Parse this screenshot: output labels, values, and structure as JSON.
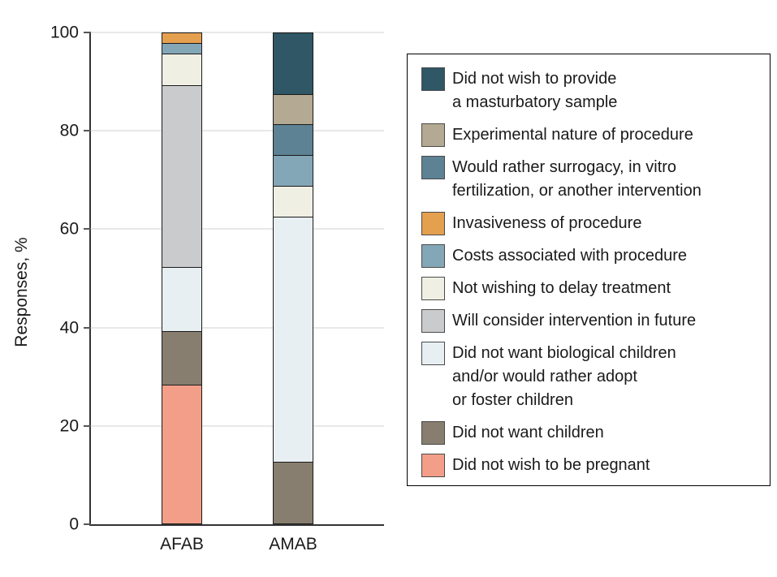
{
  "figure": {
    "background": "#ffffff"
  },
  "chart_data": {
    "type": "bar",
    "stacked": true,
    "title": "",
    "xlabel": "",
    "ylabel": "Responses, %",
    "ylim": [
      0,
      100
    ],
    "yticks": [
      0,
      20,
      40,
      60,
      80,
      100
    ],
    "grid": "horizontal",
    "categories": [
      "AFAB",
      "AMAB"
    ],
    "series": [
      {
        "name": "Did not wish to be pregnant",
        "color": "#F39E88",
        "values": [
          28.3,
          0
        ]
      },
      {
        "name": "Did not want children",
        "color": "#877E6F",
        "values": [
          10.9,
          12.5
        ]
      },
      {
        "name": "Did not want biological children and/or would rather adopt or foster children",
        "color": "#E7EFF3",
        "values": [
          13.0,
          50.0
        ]
      },
      {
        "name": "Will consider intervention in future",
        "color": "#C9CBCD",
        "values": [
          37.0,
          0
        ]
      },
      {
        "name": "Not wishing to delay treatment",
        "color": "#F0EFE3",
        "values": [
          6.5,
          6.25
        ]
      },
      {
        "name": "Costs associated with procedure",
        "color": "#84A7B7",
        "values": [
          2.2,
          6.25
        ]
      },
      {
        "name": "Invasiveness of procedure",
        "color": "#E5A04F",
        "values": [
          2.2,
          0
        ]
      },
      {
        "name": "Would rather surrogacy, in vitro fertilization, or another intervention",
        "color": "#5D8294",
        "values": [
          0,
          6.25
        ]
      },
      {
        "name": "Experimental nature of procedure",
        "color": "#B4A992",
        "values": [
          0,
          6.25
        ]
      },
      {
        "name": "Did not wish to provide a masturbatory sample",
        "color": "#2F5765",
        "values": [
          0,
          12.5
        ]
      }
    ],
    "legend": {
      "position": "right",
      "items": [
        {
          "color": "#2F5765",
          "lines": [
            "Did not wish to provide",
            "a masturbatory sample"
          ]
        },
        {
          "color": "#B4A992",
          "lines": [
            "Experimental nature of procedure"
          ]
        },
        {
          "color": "#5D8294",
          "lines": [
            "Would rather surrogacy, in vitro",
            "fertilization, or another intervention"
          ]
        },
        {
          "color": "#E5A04F",
          "lines": [
            "Invasiveness of procedure"
          ]
        },
        {
          "color": "#84A7B7",
          "lines": [
            "Costs associated with procedure"
          ]
        },
        {
          "color": "#F0EFE3",
          "lines": [
            "Not wishing to delay treatment"
          ]
        },
        {
          "color": "#C9CBCD",
          "lines": [
            "Will consider intervention in future"
          ]
        },
        {
          "color": "#E7EFF3",
          "lines": [
            "Did not want biological children",
            "and/or would rather adopt",
            "or foster children"
          ]
        },
        {
          "color": "#877E6F",
          "lines": [
            "Did not want children"
          ]
        },
        {
          "color": "#F39E88",
          "lines": [
            "Did not wish to be pregnant"
          ]
        }
      ]
    }
  }
}
